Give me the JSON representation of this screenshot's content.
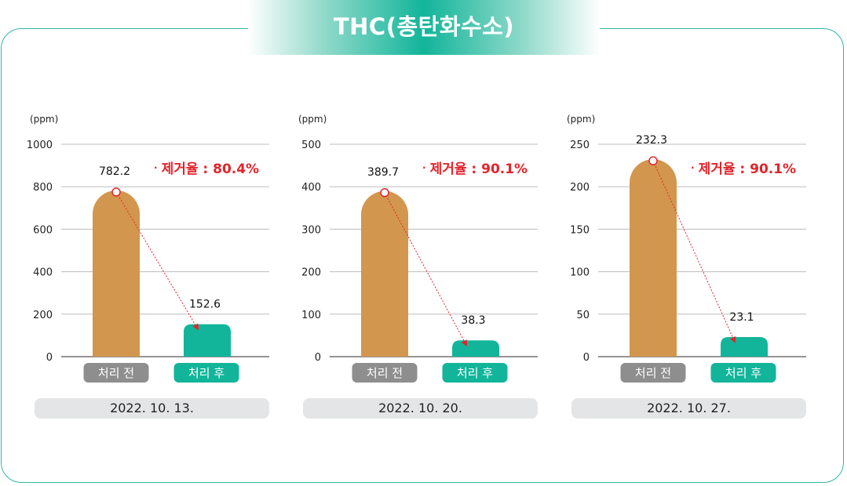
{
  "title": "THC(총탄화수소)",
  "colors": {
    "accent": "#12b59a",
    "before_bar": "#d3964e",
    "after_bar": "#12b59a",
    "before_tag": "#8e8e8e",
    "rate": "#e2242b"
  },
  "chart_data": [
    {
      "type": "bar",
      "unit_label": "(ppm)",
      "categories": [
        "처리 전",
        "처리 후"
      ],
      "values": [
        782.2,
        152.6
      ],
      "value_labels": [
        "782.2",
        "152.6"
      ],
      "yticks": [
        0,
        200,
        400,
        600,
        800,
        1000
      ],
      "ylim": [
        0,
        1000
      ],
      "removal_rate": "제거율 : 80.4%",
      "date": "2022. 10. 13."
    },
    {
      "type": "bar",
      "unit_label": "(ppm)",
      "categories": [
        "처리 전",
        "처리 후"
      ],
      "values": [
        389.7,
        38.3
      ],
      "value_labels": [
        "389.7",
        "38.3"
      ],
      "yticks": [
        0,
        100,
        200,
        300,
        400,
        500
      ],
      "ylim": [
        0,
        500
      ],
      "removal_rate": "제거율 : 90.1%",
      "date": "2022. 10. 20."
    },
    {
      "type": "bar",
      "unit_label": "(ppm)",
      "categories": [
        "처리 전",
        "처리 후"
      ],
      "values": [
        232.3,
        23.1
      ],
      "value_labels": [
        "232.3",
        "23.1"
      ],
      "yticks": [
        0,
        50,
        100,
        150,
        200,
        250
      ],
      "ylim": [
        0,
        250
      ],
      "removal_rate": "제거율 : 90.1%",
      "date": "2022. 10. 27."
    }
  ]
}
